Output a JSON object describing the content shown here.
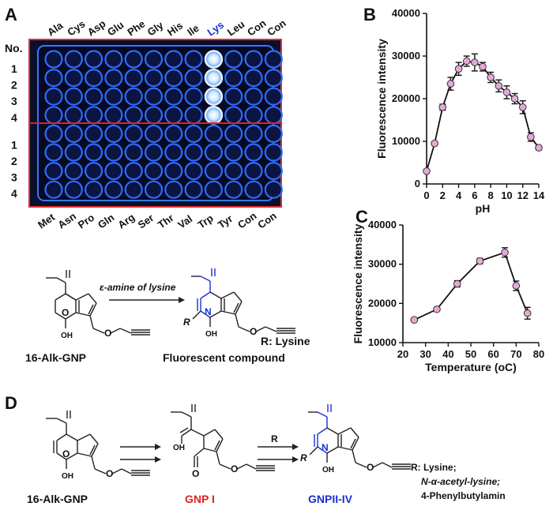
{
  "panels": {
    "A": "A",
    "B": "B",
    "C": "C",
    "D": "D"
  },
  "plate": {
    "no_label": "No.",
    "top_labels": [
      "Ala",
      "Cys",
      "Asp",
      "Glu",
      "Phe",
      "Gly",
      "His",
      "Ile",
      "Lys",
      "Leu",
      "Con",
      "Con"
    ],
    "bottom_labels": [
      "Met",
      "Asn",
      "Pro",
      "Gln",
      "Arg",
      "Ser",
      "Thr",
      "Val",
      "Trp",
      "Tyr",
      "Con",
      "Con"
    ],
    "row_labels": [
      "1",
      "2",
      "3",
      "4",
      "1",
      "2",
      "3",
      "4"
    ],
    "highlight_label": "Lys",
    "bright_column": 9,
    "bright_rows": [
      1,
      2,
      3,
      4
    ]
  },
  "chart_data": [
    {
      "type": "line",
      "panel": "B",
      "xlabel": "pH",
      "ylabel": "Fluorescence intensity",
      "xlim": [
        0,
        14
      ],
      "ylim": [
        0,
        40000
      ],
      "xticks": [
        0,
        2,
        4,
        6,
        8,
        10,
        12,
        14
      ],
      "yticks": [
        0,
        10000,
        20000,
        30000,
        40000
      ],
      "x": [
        0,
        1,
        2,
        3,
        4,
        5,
        6,
        7,
        8,
        9,
        10,
        11,
        12,
        13,
        14
      ],
      "y": [
        3000,
        9500,
        18000,
        23500,
        27000,
        28800,
        28500,
        27500,
        25000,
        23000,
        21500,
        20000,
        18000,
        11000,
        8500
      ],
      "err": [
        300,
        400,
        700,
        1500,
        1500,
        1200,
        2000,
        1000,
        1200,
        1400,
        1500,
        1200,
        1500,
        1000,
        500
      ]
    },
    {
      "type": "line",
      "panel": "C",
      "xlabel": "Temperature (oC)",
      "ylabel": "Fluorescence intensity",
      "xlim": [
        20,
        80
      ],
      "ylim": [
        10000,
        40000
      ],
      "xticks": [
        20,
        30,
        40,
        50,
        60,
        70,
        80
      ],
      "yticks": [
        10000,
        20000,
        30000,
        40000
      ],
      "x": [
        25,
        35,
        44,
        54,
        65,
        70,
        75
      ],
      "y": [
        15800,
        18500,
        25000,
        30800,
        33000,
        24500,
        17500
      ],
      "err": [
        300,
        400,
        800,
        700,
        1200,
        1200,
        1500
      ]
    }
  ],
  "scheme_top": {
    "reactant": "16-Alk-GNP",
    "arrow_label": "ε-amine of lysine",
    "product": "Fluorescent compound",
    "r_label": "R:  Lysine",
    "oh": "OH",
    "o": "O",
    "n": "N",
    "r": "R"
  },
  "scheme_d": {
    "reactant": "16-Alk-GNP",
    "intermediate": "GNP I",
    "product": "GNPII-IV",
    "arrow_r": "R",
    "r_list": [
      "R:  Lysine;",
      "N-α-acetyl-lysine;",
      "4-Phenylbutylamin"
    ]
  },
  "colors": {
    "plate_bg": "#0a0f2e",
    "well_ring": "#2f6cff",
    "bright_well": "#e6f4ff",
    "marker": "#e6a8d8",
    "highlight": "#1a2fd6",
    "red": "#e02020"
  }
}
